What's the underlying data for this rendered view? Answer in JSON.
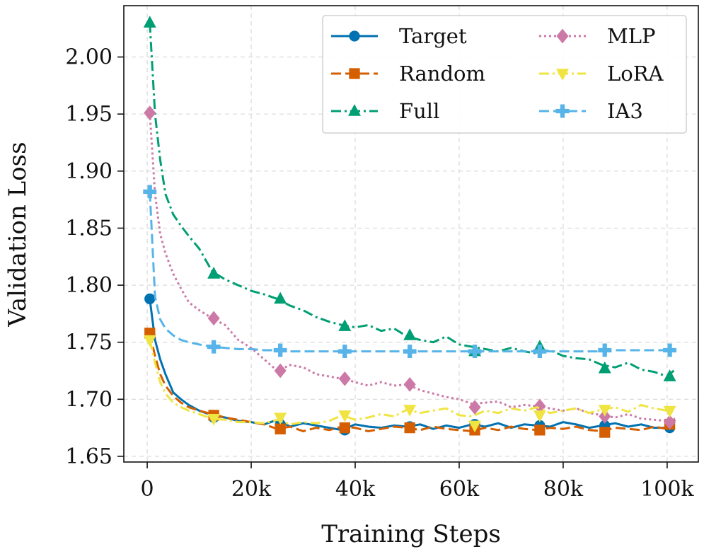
{
  "chart_data": {
    "type": "line",
    "title": "",
    "xlabel": "Training Steps",
    "ylabel": "Validation Loss",
    "xlim": [
      -4500,
      106000
    ],
    "ylim": [
      1.645,
      2.045
    ],
    "xticks": [
      0,
      20000,
      40000,
      60000,
      80000,
      100000
    ],
    "xtick_labels": [
      "0",
      "20k",
      "40k",
      "60k",
      "80k",
      "100k"
    ],
    "yticks": [
      1.65,
      1.7,
      1.75,
      1.8,
      1.85,
      1.9,
      1.95,
      2.0
    ],
    "ytick_labels": [
      "1.65",
      "1.70",
      "1.75",
      "1.80",
      "1.85",
      "1.90",
      "1.95",
      "2.00"
    ],
    "grid": true,
    "legend": {
      "position": "top-right",
      "columns": 2
    },
    "series": [
      {
        "name": "Target",
        "color": "#0072B2",
        "dash": "solid",
        "marker": "circle",
        "x": [
          500,
          1500,
          2500,
          3500,
          5000,
          6500,
          8000,
          10000,
          12500,
          15000,
          17500,
          20000,
          22500,
          25000,
          27500,
          30000,
          32500,
          35000,
          37500,
          40000,
          42500,
          45000,
          47500,
          50000,
          52500,
          55000,
          57500,
          60000,
          62500,
          65000,
          67500,
          70000,
          72500,
          75000,
          77500,
          80000,
          82500,
          85000,
          87500,
          90000,
          92500,
          95000,
          97500,
          100000,
          101500
        ],
        "y": [
          1.788,
          1.752,
          1.735,
          1.722,
          1.706,
          1.7,
          1.695,
          1.69,
          1.686,
          1.684,
          1.681,
          1.68,
          1.678,
          1.682,
          1.676,
          1.679,
          1.677,
          1.675,
          1.673,
          1.678,
          1.676,
          1.675,
          1.677,
          1.676,
          1.678,
          1.674,
          1.677,
          1.675,
          1.678,
          1.676,
          1.679,
          1.675,
          1.678,
          1.677,
          1.676,
          1.68,
          1.678,
          1.675,
          1.677,
          1.679,
          1.676,
          1.678,
          1.675,
          1.675,
          1.682
        ],
        "marker_x": [
          500,
          12800,
          25600,
          38000,
          50500,
          63000,
          75500,
          88000,
          100500
        ],
        "marker_y": [
          1.788,
          1.684,
          1.678,
          1.673,
          1.676,
          1.678,
          1.677,
          1.677,
          1.675
        ]
      },
      {
        "name": "Random",
        "color": "#D55E00",
        "dash": "dashed",
        "marker": "square",
        "x": [
          500,
          1500,
          2500,
          3500,
          5000,
          6500,
          8000,
          10000,
          12500,
          15000,
          17500,
          20000,
          22500,
          25000,
          27500,
          30000,
          32500,
          35000,
          37500,
          40000,
          42500,
          45000,
          47500,
          50000,
          52500,
          55000,
          57500,
          60000,
          62500,
          65000,
          67500,
          70000,
          72500,
          75000,
          77500,
          80000,
          82500,
          85000,
          87500,
          90000,
          92500,
          95000,
          97500,
          100000,
          101500
        ],
        "y": [
          1.758,
          1.738,
          1.722,
          1.712,
          1.703,
          1.697,
          1.693,
          1.69,
          1.687,
          1.684,
          1.682,
          1.68,
          1.678,
          1.674,
          1.676,
          1.672,
          1.675,
          1.673,
          1.676,
          1.675,
          1.672,
          1.674,
          1.676,
          1.675,
          1.673,
          1.676,
          1.674,
          1.673,
          1.672,
          1.675,
          1.673,
          1.676,
          1.674,
          1.673,
          1.675,
          1.674,
          1.676,
          1.673,
          1.672,
          1.675,
          1.674,
          1.673,
          1.676,
          1.674,
          1.675
        ],
        "marker_x": [
          500,
          12800,
          25600,
          38000,
          50500,
          63000,
          75500,
          88000,
          100500
        ],
        "marker_y": [
          1.758,
          1.686,
          1.674,
          1.675,
          1.675,
          1.673,
          1.673,
          1.671,
          1.678
        ]
      },
      {
        "name": "Full",
        "color": "#009E73",
        "dash": "dashdot",
        "marker": "triangle-up",
        "x": [
          500,
          1500,
          2500,
          3500,
          5000,
          6500,
          8000,
          10000,
          12500,
          15000,
          17500,
          20000,
          22500,
          25000,
          27500,
          30000,
          32500,
          35000,
          37500,
          40000,
          42500,
          45000,
          47500,
          50000,
          52500,
          55000,
          57500,
          60000,
          62500,
          65000,
          67500,
          70000,
          72500,
          75000,
          77500,
          80000,
          82500,
          85000,
          87500,
          90000,
          92500,
          95000,
          97500,
          100000,
          101500
        ],
        "y": [
          2.03,
          1.95,
          1.91,
          1.88,
          1.862,
          1.852,
          1.843,
          1.832,
          1.812,
          1.805,
          1.8,
          1.795,
          1.792,
          1.788,
          1.782,
          1.778,
          1.772,
          1.768,
          1.765,
          1.763,
          1.765,
          1.76,
          1.762,
          1.755,
          1.752,
          1.75,
          1.755,
          1.748,
          1.746,
          1.744,
          1.742,
          1.745,
          1.742,
          1.74,
          1.743,
          1.738,
          1.736,
          1.735,
          1.73,
          1.728,
          1.732,
          1.726,
          1.724,
          1.72,
          1.726
        ],
        "marker_x": [
          500,
          12800,
          25600,
          38000,
          50500,
          63000,
          75500,
          88000,
          100500
        ],
        "marker_y": [
          2.03,
          1.81,
          1.788,
          1.764,
          1.756,
          1.742,
          1.746,
          1.727,
          1.72
        ]
      },
      {
        "name": "MLP",
        "color": "#CC79A7",
        "dash": "dotted",
        "marker": "diamond",
        "x": [
          500,
          1500,
          2500,
          3500,
          5000,
          6500,
          8000,
          10000,
          12500,
          15000,
          17500,
          20000,
          22500,
          25000,
          27500,
          30000,
          32500,
          35000,
          37500,
          40000,
          42500,
          45000,
          47500,
          50000,
          52500,
          55000,
          57500,
          60000,
          62500,
          65000,
          67500,
          70000,
          72500,
          75000,
          77500,
          80000,
          82500,
          85000,
          87500,
          90000,
          92500,
          95000,
          97500,
          100000,
          101500
        ],
        "y": [
          1.951,
          1.88,
          1.845,
          1.828,
          1.81,
          1.797,
          1.785,
          1.778,
          1.771,
          1.765,
          1.752,
          1.745,
          1.735,
          1.725,
          1.73,
          1.728,
          1.722,
          1.72,
          1.718,
          1.715,
          1.712,
          1.715,
          1.712,
          1.713,
          1.708,
          1.705,
          1.702,
          1.7,
          1.696,
          1.697,
          1.698,
          1.693,
          1.695,
          1.694,
          1.692,
          1.69,
          1.692,
          1.688,
          1.686,
          1.684,
          1.687,
          1.683,
          1.682,
          1.681,
          1.683
        ],
        "marker_x": [
          500,
          12800,
          25600,
          38000,
          50500,
          63000,
          75500,
          88000,
          100500
        ],
        "marker_y": [
          1.951,
          1.771,
          1.725,
          1.718,
          1.713,
          1.693,
          1.694,
          1.685,
          1.68
        ]
      },
      {
        "name": "LoRA",
        "color": "#F0E442",
        "dash": "dashdot",
        "marker": "triangle-down",
        "x": [
          500,
          1500,
          2500,
          3500,
          5000,
          6500,
          8000,
          10000,
          12500,
          15000,
          17500,
          20000,
          22500,
          25000,
          27500,
          30000,
          32500,
          35000,
          37500,
          40000,
          42500,
          45000,
          47500,
          50000,
          52500,
          55000,
          57500,
          60000,
          62500,
          65000,
          67500,
          70000,
          72500,
          75000,
          77500,
          80000,
          82500,
          85000,
          87500,
          90000,
          92500,
          95000,
          97500,
          100000,
          101500
        ],
        "y": [
          1.752,
          1.732,
          1.715,
          1.705,
          1.697,
          1.693,
          1.69,
          1.687,
          1.683,
          1.682,
          1.68,
          1.68,
          1.679,
          1.682,
          1.678,
          1.68,
          1.679,
          1.681,
          1.686,
          1.682,
          1.684,
          1.687,
          1.685,
          1.691,
          1.688,
          1.69,
          1.692,
          1.686,
          1.685,
          1.69,
          1.688,
          1.692,
          1.69,
          1.693,
          1.688,
          1.69,
          1.692,
          1.688,
          1.691,
          1.693,
          1.689,
          1.695,
          1.692,
          1.69,
          1.691
        ],
        "marker_x": [
          500,
          12800,
          25600,
          38000,
          50500,
          63000,
          75500,
          88000,
          100500
        ],
        "marker_y": [
          1.752,
          1.683,
          1.684,
          1.686,
          1.691,
          1.677,
          1.686,
          1.691,
          1.69
        ]
      },
      {
        "name": "IA3",
        "color": "#56B4E9",
        "dash": "dashed",
        "marker": "plus",
        "x": [
          500,
          1500,
          2500,
          3500,
          5000,
          6500,
          8000,
          10000,
          12500,
          15000,
          17500,
          20000,
          22500,
          25000,
          27500,
          30000,
          32500,
          35000,
          37500,
          40000,
          42500,
          45000,
          47500,
          50000,
          52500,
          55000,
          57500,
          60000,
          62500,
          65000,
          67500,
          70000,
          72500,
          75000,
          77500,
          80000,
          82500,
          85000,
          87500,
          90000,
          92500,
          95000,
          97500,
          100000,
          101500
        ],
        "y": [
          1.882,
          1.79,
          1.77,
          1.762,
          1.756,
          1.752,
          1.75,
          1.748,
          1.746,
          1.745,
          1.744,
          1.744,
          1.743,
          1.743,
          1.742,
          1.742,
          1.742,
          1.742,
          1.742,
          1.742,
          1.742,
          1.742,
          1.742,
          1.742,
          1.742,
          1.742,
          1.742,
          1.742,
          1.742,
          1.742,
          1.742,
          1.742,
          1.742,
          1.742,
          1.742,
          1.742,
          1.742,
          1.742,
          1.742,
          1.743,
          1.743,
          1.743,
          1.743,
          1.743,
          1.743
        ],
        "marker_x": [
          500,
          12800,
          25600,
          38000,
          50500,
          63000,
          75500,
          88000,
          100500
        ],
        "marker_y": [
          1.882,
          1.746,
          1.743,
          1.742,
          1.742,
          1.742,
          1.742,
          1.743,
          1.743
        ]
      }
    ]
  }
}
